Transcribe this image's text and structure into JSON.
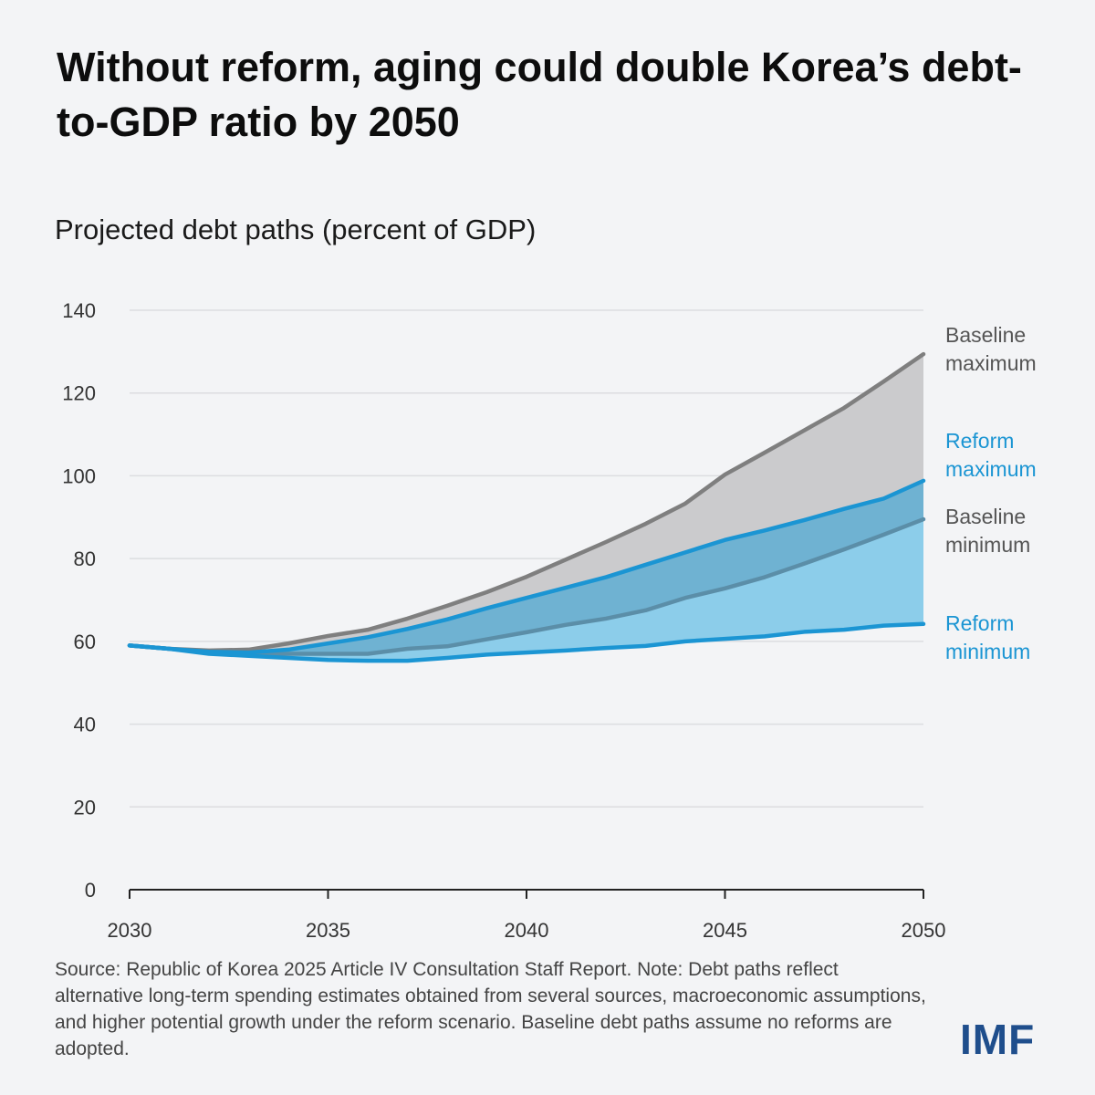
{
  "title": "Without reform, aging could double Korea’s debt-to-GDP ratio by 2050",
  "subtitle": "Projected debt paths (percent of GDP)",
  "source": "Source: Republic of Korea 2025 Article IV Consultation Staff Report. Note: Debt paths reflect alternative long-term spending estimates obtained from several sources, macroeconomic assumptions, and higher potential growth under the reform scenario. Baseline debt paths assume no reforms are adopted.",
  "logo": "IMF",
  "chart_data": {
    "type": "area",
    "title": "Projected debt paths (percent of GDP)",
    "xlabel": "",
    "ylabel": "",
    "xlim": [
      2030,
      2050
    ],
    "ylim": [
      0,
      140
    ],
    "grid": true,
    "xticks": [
      2030,
      2035,
      2040,
      2045,
      2050
    ],
    "yticks": [
      0,
      20,
      40,
      60,
      80,
      100,
      120,
      140
    ],
    "x": [
      2030,
      2031,
      2032,
      2033,
      2034,
      2035,
      2036,
      2037,
      2038,
      2039,
      2040,
      2041,
      2042,
      2043,
      2044,
      2045,
      2046,
      2047,
      2048,
      2049,
      2050
    ],
    "series": [
      {
        "name": "Baseline maximum",
        "color": "#7f7f7f",
        "fill": "#cbcbcd",
        "values": [
          59,
          58.2,
          57.8,
          58,
          59.5,
          61.3,
          62.8,
          65.5,
          68.6,
          71.9,
          75.6,
          79.8,
          84,
          88.4,
          93.3,
          100.3,
          105.6,
          111,
          116.4,
          122.8,
          129.4
        ]
      },
      {
        "name": "Reform maximum",
        "color": "#1b95d3",
        "fill": "#6fb2d2",
        "values": [
          59,
          58.2,
          57.5,
          57.3,
          58,
          59.5,
          61,
          63,
          65.3,
          68,
          70.5,
          73,
          75.5,
          78.5,
          81.5,
          84.5,
          86.8,
          89.3,
          92,
          94.5,
          98.8
        ]
      },
      {
        "name": "Baseline minimum",
        "color": "#5b8ea8",
        "fill": "#8ccdea",
        "values": [
          59,
          58.2,
          57.3,
          57,
          57,
          57,
          57,
          58.2,
          58.8,
          60.5,
          62.2,
          64,
          65.5,
          67.5,
          70.5,
          72.8,
          75.5,
          78.8,
          82.2,
          85.8,
          89.5
        ]
      },
      {
        "name": "Reform minimum",
        "color": "#1b95d3",
        "values": [
          59,
          58.2,
          57,
          56.5,
          56,
          55.5,
          55.3,
          55.3,
          56,
          56.8,
          57.3,
          57.8,
          58.4,
          58.9,
          60,
          60.6,
          61.2,
          62.3,
          62.8,
          63.8,
          64.2
        ]
      }
    ],
    "labels": [
      {
        "lines": [
          "Baseline",
          "maximum"
        ],
        "color": "#555555"
      },
      {
        "lines": [
          "Reform",
          "maximum"
        ],
        "color": "#1b95d3"
      },
      {
        "lines": [
          "Baseline",
          "minimum"
        ],
        "color": "#555555"
      },
      {
        "lines": [
          "Reform",
          "minimum"
        ],
        "color": "#1b95d3"
      }
    ]
  }
}
